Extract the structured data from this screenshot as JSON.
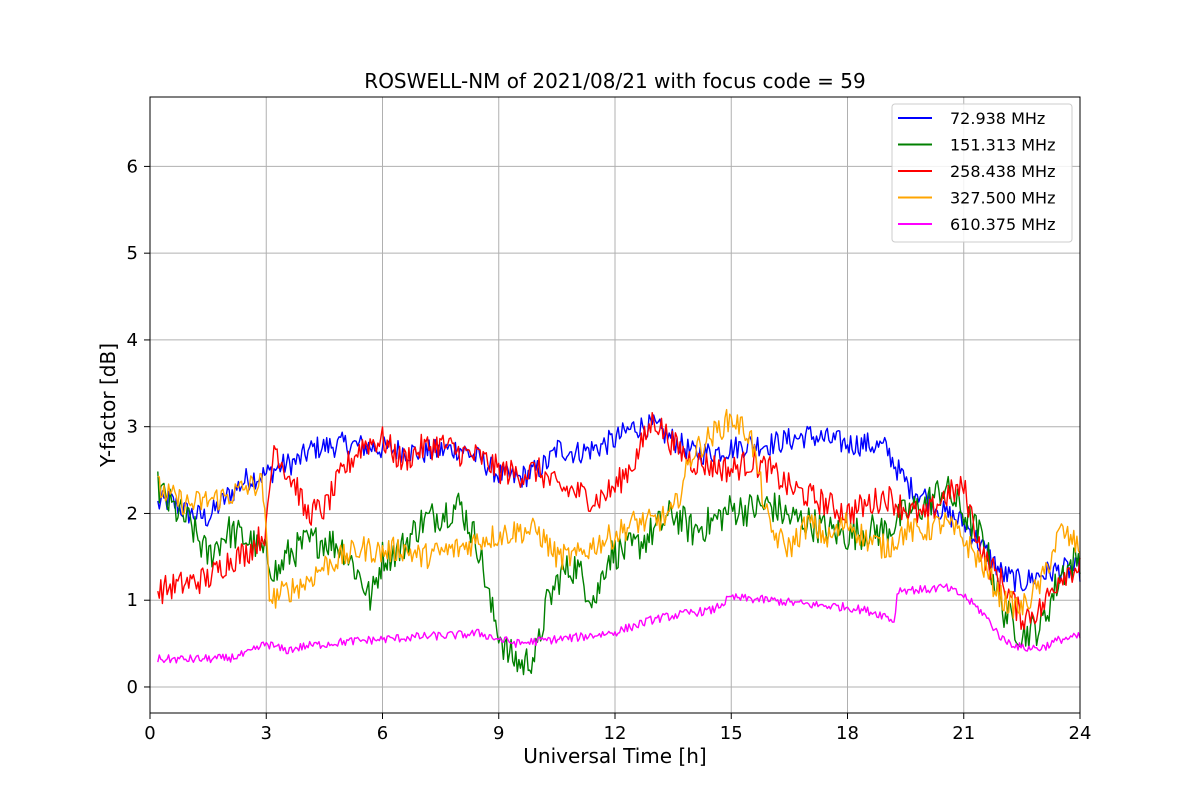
{
  "chart_data": {
    "type": "line",
    "title": "ROSWELL-NM of 2021/08/21 with focus code = 59",
    "xlabel": "Universal Time [h]",
    "ylabel": "Y-factor [dB]",
    "xlim": [
      0,
      24
    ],
    "ylim": [
      -0.3,
      6.8
    ],
    "x_ticks": [
      0,
      3,
      6,
      9,
      12,
      15,
      18,
      21,
      24
    ],
    "y_ticks": [
      0,
      1,
      2,
      3,
      4,
      5,
      6
    ],
    "grid": true,
    "legend_position": "top-right",
    "series": [
      {
        "name": " 72.938 MHz",
        "color": "#0000ff",
        "noise": 0.14,
        "points": [
          [
            0.2,
            2.1
          ],
          [
            0.5,
            2.15
          ],
          [
            1.0,
            2.0
          ],
          [
            1.5,
            1.95
          ],
          [
            2.0,
            2.2
          ],
          [
            2.5,
            2.4
          ],
          [
            3.0,
            2.45
          ],
          [
            3.4,
            2.55
          ],
          [
            3.8,
            2.6
          ],
          [
            4.2,
            2.75
          ],
          [
            5.0,
            2.8
          ],
          [
            6.0,
            2.75
          ],
          [
            7.0,
            2.7
          ],
          [
            8.0,
            2.75
          ],
          [
            8.6,
            2.6
          ],
          [
            9.0,
            2.45
          ],
          [
            9.5,
            2.4
          ],
          [
            10.0,
            2.5
          ],
          [
            10.3,
            2.6
          ],
          [
            10.5,
            2.75
          ],
          [
            11.0,
            2.7
          ],
          [
            11.5,
            2.75
          ],
          [
            12.0,
            2.85
          ],
          [
            12.5,
            3.0
          ],
          [
            13.0,
            3.0
          ],
          [
            13.5,
            2.85
          ],
          [
            14.0,
            2.7
          ],
          [
            14.5,
            2.7
          ],
          [
            15.0,
            2.75
          ],
          [
            15.5,
            2.8
          ],
          [
            16.0,
            2.8
          ],
          [
            16.5,
            2.85
          ],
          [
            17.0,
            2.9
          ],
          [
            17.5,
            2.85
          ],
          [
            18.0,
            2.8
          ],
          [
            18.5,
            2.8
          ],
          [
            19.0,
            2.75
          ],
          [
            19.3,
            2.5
          ],
          [
            19.6,
            2.3
          ],
          [
            20.0,
            2.2
          ],
          [
            20.5,
            2.0
          ],
          [
            21.0,
            1.9
          ],
          [
            21.5,
            1.6
          ],
          [
            22.0,
            1.3
          ],
          [
            22.5,
            1.2
          ],
          [
            23.0,
            1.3
          ],
          [
            23.5,
            1.35
          ],
          [
            24.0,
            1.35
          ]
        ]
      },
      {
        "name": "151.313 MHz",
        "color": "#008000",
        "noise": 0.2,
        "points": [
          [
            0.2,
            2.3
          ],
          [
            0.5,
            2.1
          ],
          [
            1.0,
            1.9
          ],
          [
            1.5,
            1.5
          ],
          [
            2.0,
            1.8
          ],
          [
            2.5,
            1.7
          ],
          [
            3.0,
            1.5
          ],
          [
            3.3,
            1.3
          ],
          [
            3.5,
            1.5
          ],
          [
            4.0,
            1.65
          ],
          [
            4.5,
            1.7
          ],
          [
            5.0,
            1.6
          ],
          [
            5.5,
            1.2
          ],
          [
            5.7,
            1.0
          ],
          [
            6.0,
            1.5
          ],
          [
            6.5,
            1.6
          ],
          [
            7.0,
            1.9
          ],
          [
            7.5,
            2.0
          ],
          [
            8.0,
            2.1
          ],
          [
            8.5,
            1.6
          ],
          [
            8.8,
            0.9
          ],
          [
            9.2,
            0.4
          ],
          [
            9.6,
            0.25
          ],
          [
            10.0,
            0.4
          ],
          [
            10.2,
            0.9
          ],
          [
            10.6,
            1.3
          ],
          [
            11.0,
            1.4
          ],
          [
            11.2,
            1.2
          ],
          [
            11.5,
            1.0
          ],
          [
            11.8,
            1.5
          ],
          [
            12.0,
            1.55
          ],
          [
            12.5,
            1.6
          ],
          [
            13.0,
            1.8
          ],
          [
            13.5,
            2.0
          ],
          [
            14.0,
            1.8
          ],
          [
            14.5,
            1.9
          ],
          [
            15.0,
            2.05
          ],
          [
            15.5,
            2.05
          ],
          [
            16.0,
            2.1
          ],
          [
            16.5,
            1.95
          ],
          [
            17.0,
            1.9
          ],
          [
            17.5,
            1.8
          ],
          [
            18.0,
            1.75
          ],
          [
            18.5,
            1.8
          ],
          [
            19.0,
            1.8
          ],
          [
            19.5,
            2.0
          ],
          [
            20.0,
            2.1
          ],
          [
            20.5,
            2.3
          ],
          [
            21.0,
            2.0
          ],
          [
            21.5,
            1.7
          ],
          [
            22.0,
            0.9
          ],
          [
            22.5,
            0.6
          ],
          [
            23.0,
            0.7
          ],
          [
            23.5,
            1.3
          ],
          [
            24.0,
            1.5
          ]
        ]
      },
      {
        "name": "258.438 MHz",
        "color": "#ff0000",
        "noise": 0.16,
        "points": [
          [
            0.2,
            1.1
          ],
          [
            0.5,
            1.15
          ],
          [
            1.0,
            1.2
          ],
          [
            1.5,
            1.25
          ],
          [
            2.0,
            1.45
          ],
          [
            2.5,
            1.55
          ],
          [
            3.0,
            1.8
          ],
          [
            3.2,
            2.8
          ],
          [
            3.5,
            2.5
          ],
          [
            3.8,
            2.3
          ],
          [
            4.0,
            2.0
          ],
          [
            4.5,
            2.05
          ],
          [
            5.0,
            2.5
          ],
          [
            5.5,
            2.8
          ],
          [
            6.0,
            2.85
          ],
          [
            6.5,
            2.6
          ],
          [
            7.0,
            2.75
          ],
          [
            7.5,
            2.8
          ],
          [
            8.0,
            2.7
          ],
          [
            8.5,
            2.65
          ],
          [
            9.0,
            2.5
          ],
          [
            9.5,
            2.45
          ],
          [
            10.0,
            2.5
          ],
          [
            10.5,
            2.3
          ],
          [
            11.0,
            2.25
          ],
          [
            11.5,
            2.15
          ],
          [
            12.0,
            2.3
          ],
          [
            12.5,
            2.6
          ],
          [
            13.0,
            3.1
          ],
          [
            13.5,
            2.8
          ],
          [
            14.0,
            2.6
          ],
          [
            14.5,
            2.55
          ],
          [
            15.0,
            2.5
          ],
          [
            15.5,
            2.6
          ],
          [
            16.0,
            2.5
          ],
          [
            16.5,
            2.3
          ],
          [
            17.0,
            2.2
          ],
          [
            17.5,
            2.1
          ],
          [
            18.0,
            2.0
          ],
          [
            18.5,
            2.1
          ],
          [
            19.0,
            2.2
          ],
          [
            19.5,
            2.05
          ],
          [
            20.0,
            1.95
          ],
          [
            20.5,
            2.2
          ],
          [
            21.0,
            2.3
          ],
          [
            21.5,
            1.5
          ],
          [
            22.0,
            1.2
          ],
          [
            22.5,
            0.8
          ],
          [
            23.0,
            0.9
          ],
          [
            23.5,
            1.3
          ],
          [
            24.0,
            1.4
          ]
        ]
      },
      {
        "name": "327.500 MHz",
        "color": "#ffa500",
        "noise": 0.15,
        "points": [
          [
            0.2,
            2.3
          ],
          [
            0.5,
            2.2
          ],
          [
            1.0,
            2.1
          ],
          [
            1.5,
            2.15
          ],
          [
            2.0,
            2.2
          ],
          [
            2.5,
            2.3
          ],
          [
            2.9,
            2.35
          ],
          [
            3.1,
            1.0
          ],
          [
            3.5,
            1.1
          ],
          [
            4.0,
            1.2
          ],
          [
            4.5,
            1.4
          ],
          [
            5.0,
            1.5
          ],
          [
            5.5,
            1.6
          ],
          [
            6.0,
            1.55
          ],
          [
            6.5,
            1.6
          ],
          [
            7.0,
            1.5
          ],
          [
            7.5,
            1.55
          ],
          [
            8.0,
            1.6
          ],
          [
            8.5,
            1.7
          ],
          [
            9.0,
            1.75
          ],
          [
            9.5,
            1.8
          ],
          [
            10.0,
            1.8
          ],
          [
            10.5,
            1.5
          ],
          [
            11.0,
            1.5
          ],
          [
            11.5,
            1.65
          ],
          [
            12.0,
            1.75
          ],
          [
            12.5,
            1.9
          ],
          [
            13.0,
            1.9
          ],
          [
            13.5,
            2.0
          ],
          [
            14.0,
            2.7
          ],
          [
            14.5,
            2.9
          ],
          [
            15.0,
            3.1
          ],
          [
            15.5,
            2.9
          ],
          [
            16.0,
            1.8
          ],
          [
            16.5,
            1.6
          ],
          [
            17.0,
            1.9
          ],
          [
            17.5,
            1.7
          ],
          [
            18.0,
            1.9
          ],
          [
            18.5,
            1.7
          ],
          [
            19.0,
            1.6
          ],
          [
            19.5,
            1.8
          ],
          [
            20.0,
            1.8
          ],
          [
            20.5,
            1.9
          ],
          [
            21.0,
            1.7
          ],
          [
            21.5,
            1.4
          ],
          [
            22.0,
            1.0
          ],
          [
            22.5,
            0.9
          ],
          [
            23.0,
            1.2
          ],
          [
            23.5,
            1.8
          ],
          [
            24.0,
            1.6
          ]
        ]
      },
      {
        "name": "610.375 MHz",
        "color": "#ff00ff",
        "noise": 0.05,
        "points": [
          [
            0.2,
            0.32
          ],
          [
            1.0,
            0.32
          ],
          [
            2.0,
            0.33
          ],
          [
            2.5,
            0.38
          ],
          [
            3.0,
            0.5
          ],
          [
            3.5,
            0.42
          ],
          [
            4.0,
            0.47
          ],
          [
            5.0,
            0.52
          ],
          [
            6.0,
            0.55
          ],
          [
            7.0,
            0.58
          ],
          [
            8.0,
            0.6
          ],
          [
            8.5,
            0.62
          ],
          [
            9.0,
            0.55
          ],
          [
            9.5,
            0.5
          ],
          [
            10.0,
            0.53
          ],
          [
            11.0,
            0.57
          ],
          [
            12.0,
            0.63
          ],
          [
            13.0,
            0.78
          ],
          [
            14.0,
            0.86
          ],
          [
            14.5,
            0.88
          ],
          [
            15.0,
            1.03
          ],
          [
            16.0,
            1.0
          ],
          [
            17.0,
            0.95
          ],
          [
            18.0,
            0.92
          ],
          [
            18.5,
            0.88
          ],
          [
            19.0,
            0.82
          ],
          [
            19.2,
            0.75
          ],
          [
            19.3,
            1.12
          ],
          [
            20.0,
            1.12
          ],
          [
            20.5,
            1.15
          ],
          [
            21.0,
            1.05
          ],
          [
            21.5,
            0.85
          ],
          [
            22.0,
            0.55
          ],
          [
            22.5,
            0.45
          ],
          [
            23.0,
            0.45
          ],
          [
            23.5,
            0.55
          ],
          [
            24.0,
            0.58
          ]
        ]
      }
    ]
  }
}
